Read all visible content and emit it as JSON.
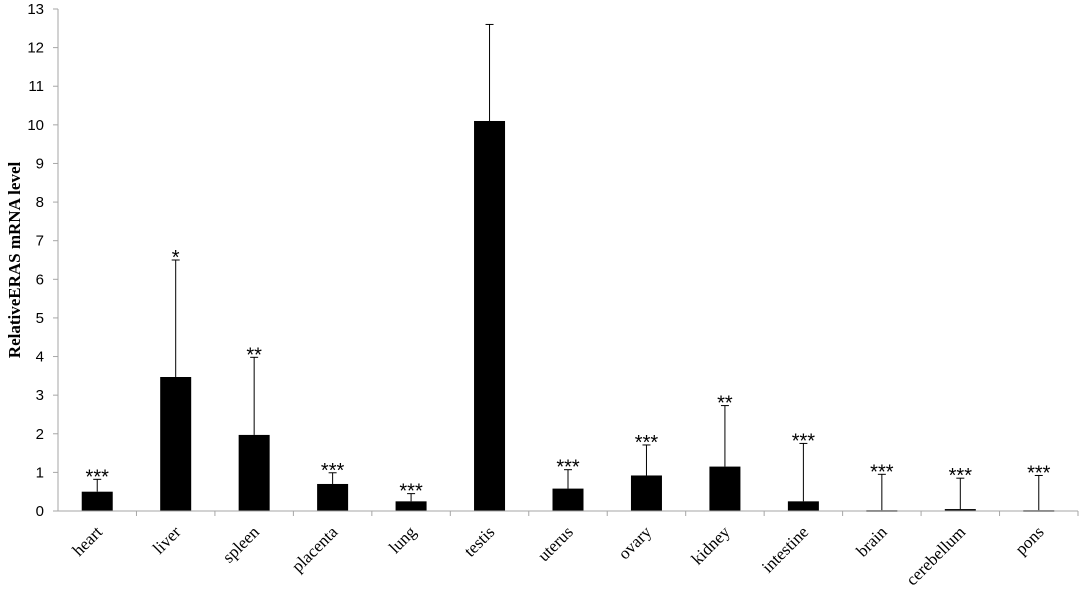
{
  "chart_data": {
    "type": "bar",
    "title": "",
    "xlabel": "",
    "ylabel": "RelativeERAS mRNA level",
    "ylim": [
      0,
      13
    ],
    "yticks": [
      0,
      1,
      2,
      3,
      4,
      5,
      6,
      7,
      8,
      9,
      10,
      11,
      12,
      13
    ],
    "grid": false,
    "legend": "none",
    "bar_color": "#000000",
    "categories": [
      "heart",
      "liver",
      "spleen",
      "placenta",
      "lung",
      "testis",
      "uterus",
      "ovary",
      "kidney",
      "intestine",
      "brain",
      "cerebellum",
      "pons"
    ],
    "values": [
      0.5,
      3.47,
      1.97,
      0.7,
      0.25,
      10.1,
      0.58,
      0.92,
      1.15,
      0.25,
      0.02,
      0.05,
      0.02
    ],
    "error_upper": [
      0.32,
      3.03,
      2.01,
      0.29,
      0.2,
      2.5,
      0.49,
      0.79,
      1.58,
      1.5,
      0.93,
      0.8,
      0.9
    ],
    "significance": [
      "***",
      "*",
      "**",
      "***",
      "***",
      "",
      "***",
      "***",
      "**",
      "***",
      "***",
      "***",
      "***"
    ]
  }
}
